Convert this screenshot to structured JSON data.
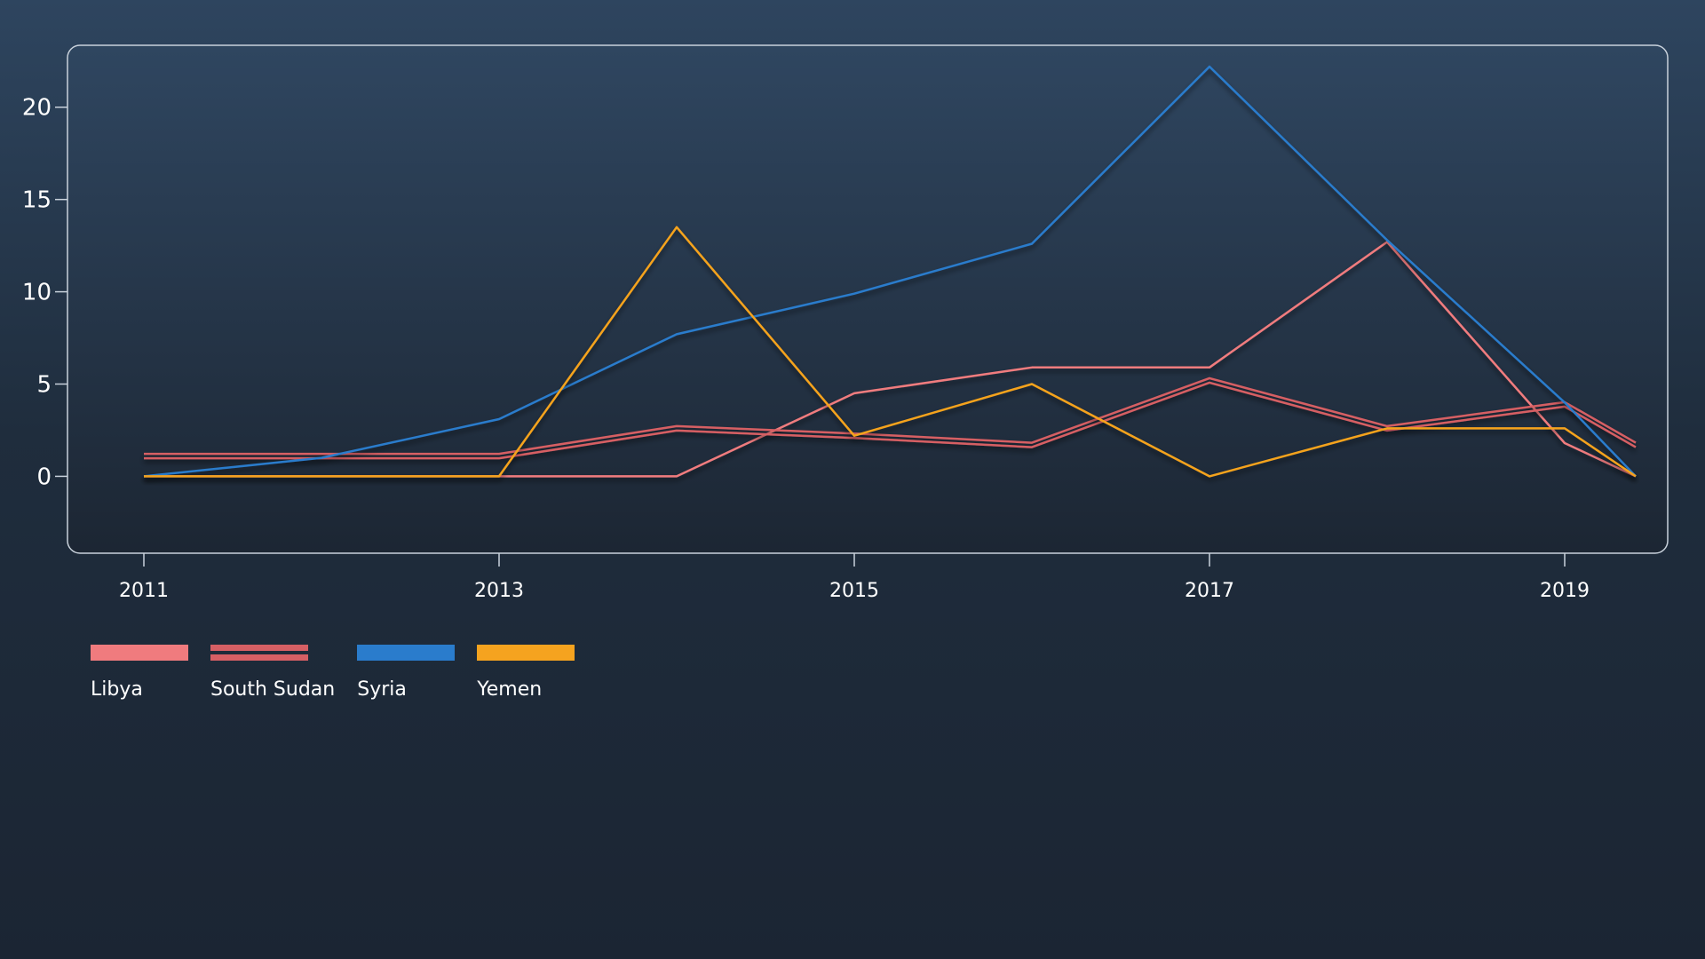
{
  "chart_data": {
    "type": "line",
    "title": "",
    "xlabel": "",
    "ylabel": "",
    "x": [
      2011,
      2012,
      2013,
      2014,
      2015,
      2016,
      2017,
      2018,
      2019,
      2019.4
    ],
    "x_ticks": [
      "2011",
      "2013",
      "2015",
      "2017",
      "2019"
    ],
    "y_ticks": [
      "0",
      "5",
      "10",
      "15",
      "20"
    ],
    "xlim": [
      2011,
      2019.4
    ],
    "ylim": [
      -2,
      23.5
    ],
    "grid": false,
    "legend_position": "bottom-left",
    "series": [
      {
        "name": "Libya",
        "color": "#f07b7e",
        "style": "single",
        "values": [
          0,
          0,
          0,
          0,
          4.5,
          5.9,
          5.9,
          12.7,
          1.8,
          0
        ]
      },
      {
        "name": "South Sudan",
        "color": "#d65f64",
        "style": "double",
        "values": [
          1.1,
          1.1,
          1.1,
          2.6,
          2.2,
          1.7,
          5.2,
          2.6,
          3.9,
          1.7
        ]
      },
      {
        "name": "Syria",
        "color": "#2a7ccc",
        "style": "single",
        "values": [
          0,
          1.0,
          3.1,
          7.7,
          9.9,
          12.6,
          22.2,
          12.8,
          4.0,
          0
        ]
      },
      {
        "name": "Yemen",
        "color": "#f5a31f",
        "style": "single",
        "values": [
          0,
          0,
          0,
          13.5,
          2.2,
          5.0,
          0,
          2.6,
          2.6,
          0
        ]
      }
    ]
  }
}
